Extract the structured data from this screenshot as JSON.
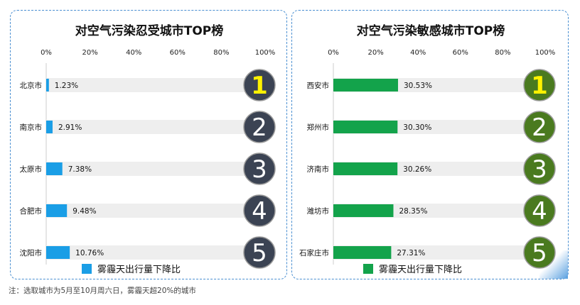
{
  "chart_data": [
    {
      "type": "bar",
      "title": "对空气污染忍受城市TOP榜",
      "x_ticks": [
        "0%",
        "20%",
        "40%",
        "60%",
        "80%",
        "100%"
      ],
      "xlim": [
        0,
        100
      ],
      "categories": [
        "北京市",
        "南京市",
        "太原市",
        "合肥市",
        "沈阳市"
      ],
      "values": [
        1.23,
        2.91,
        7.38,
        9.48,
        10.76
      ],
      "value_labels": [
        "1.23%",
        "2.91%",
        "7.38%",
        "9.48%",
        "10.76%"
      ],
      "ranks": [
        "1",
        "2",
        "3",
        "4",
        "5"
      ],
      "legend": "雾霾天出行量下降比",
      "bar_color": "#1a9ee6",
      "track_color": "#eeeeee",
      "rank_color": "#3b4353",
      "rank_first_color": "#fff200",
      "rank_text_color": "#ffffff"
    },
    {
      "type": "bar",
      "title": "对空气污染敏感城市TOP榜",
      "x_ticks": [
        "0%",
        "20%",
        "40%",
        "60%",
        "80%",
        "100%"
      ],
      "xlim": [
        0,
        100
      ],
      "categories": [
        "西安市",
        "郑州市",
        "济南市",
        "潍坊市",
        "石家庄市"
      ],
      "values": [
        30.53,
        30.3,
        30.26,
        28.35,
        27.31
      ],
      "value_labels": [
        "30.53%",
        "30.30%",
        "30.26%",
        "28.35%",
        "27.31%"
      ],
      "ranks": [
        "1",
        "2",
        "3",
        "4",
        "5"
      ],
      "legend": "雾霾天出行量下降比",
      "bar_color": "#13a34b",
      "track_color": "#eeeeee",
      "rank_color": "#4a7a1f",
      "rank_first_color": "#fff200",
      "rank_text_color": "#ffffff"
    }
  ],
  "footnote": "注：选取城市为5月至10月周六日，雾霾天超20%的城市"
}
